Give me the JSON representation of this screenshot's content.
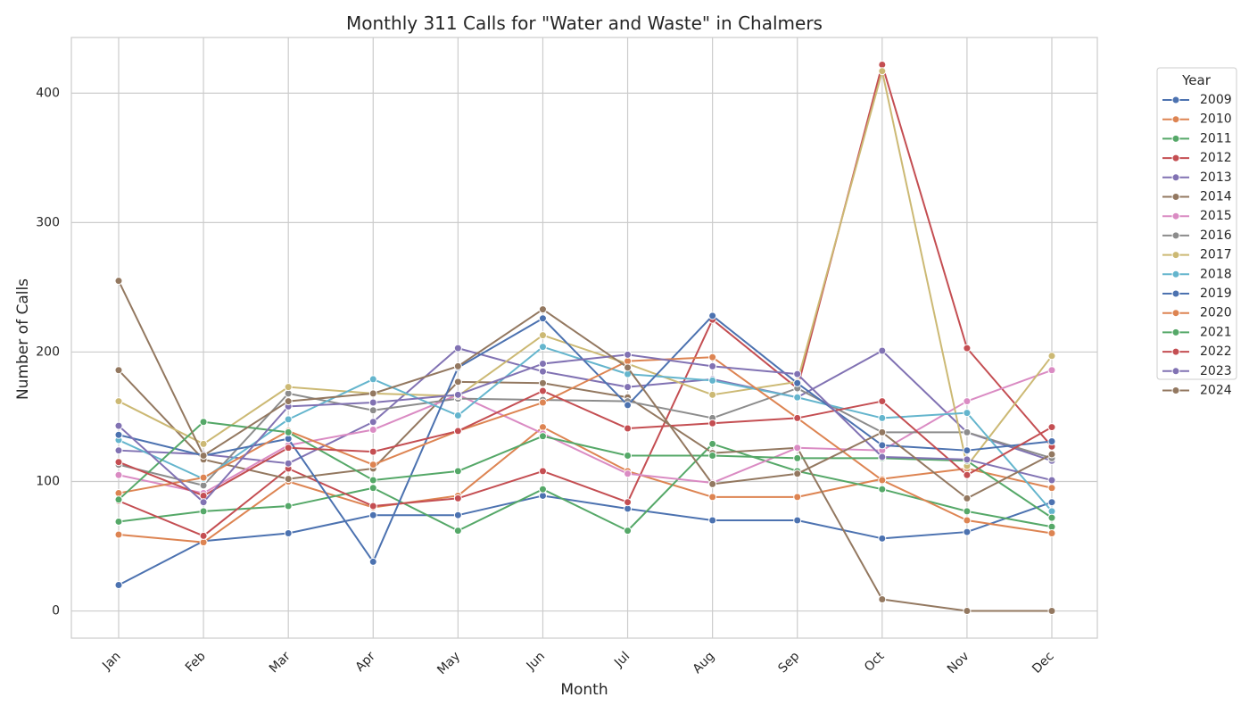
{
  "chart_data": {
    "type": "line",
    "title": "Monthly 311 Calls for \"Water and Waste\" in Chalmers",
    "xlabel": "Month",
    "ylabel": "Number of Calls",
    "categories": [
      "Jan",
      "Feb",
      "Mar",
      "Apr",
      "May",
      "Jun",
      "Jul",
      "Aug",
      "Sep",
      "Oct",
      "Nov",
      "Dec"
    ],
    "yticks": [
      0,
      100,
      200,
      300,
      400
    ],
    "ylim": [
      -21,
      443
    ],
    "grid": true,
    "legend": {
      "title": "Year",
      "placement": "outside-right"
    },
    "series": [
      {
        "name": "2009",
        "color": "#4c72b0",
        "values": [
          20,
          54,
          60,
          74,
          74,
          89,
          79,
          70,
          70,
          56,
          61,
          84
        ]
      },
      {
        "name": "2010",
        "color": "#dd8452",
        "values": [
          59,
          53,
          100,
          80,
          89,
          142,
          108,
          88,
          88,
          102,
          110,
          95
        ]
      },
      {
        "name": "2011",
        "color": "#55a868",
        "values": [
          69,
          77,
          81,
          95,
          62,
          94,
          62,
          129,
          108,
          94,
          77,
          65
        ]
      },
      {
        "name": "2012",
        "color": "#c44e52",
        "values": [
          85,
          58,
          110,
          81,
          87,
          108,
          84,
          225,
          172,
          422,
          203,
          127
        ]
      },
      {
        "name": "2013",
        "color": "#8172b3",
        "values": [
          124,
          121,
          114,
          146,
          203,
          185,
          173,
          179,
          165,
          201,
          138,
          116
        ]
      },
      {
        "name": "2014",
        "color": "#937860",
        "values": [
          186,
          117,
          102,
          110,
          177,
          176,
          165,
          122,
          126,
          9,
          0,
          0
        ]
      },
      {
        "name": "2015",
        "color": "#da8bc3",
        "values": [
          105,
          91,
          128,
          140,
          167,
          137,
          106,
          99,
          126,
          124,
          162,
          186
        ]
      },
      {
        "name": "2016",
        "color": "#8c8c8c",
        "values": [
          113,
          97,
          168,
          155,
          164,
          163,
          162,
          149,
          172,
          138,
          138,
          118
        ]
      },
      {
        "name": "2017",
        "color": "#ccb974",
        "values": [
          162,
          129,
          173,
          168,
          166,
          213,
          191,
          167,
          177,
          417,
          112,
          197
        ]
      },
      {
        "name": "2018",
        "color": "#64b5cd",
        "values": [
          132,
          102,
          148,
          179,
          151,
          204,
          183,
          178,
          165,
          149,
          153,
          77
        ]
      },
      {
        "name": "2019",
        "color": "#4c72b0",
        "values": [
          136,
          120,
          133,
          38,
          188,
          226,
          159,
          228,
          176,
          128,
          124,
          131
        ]
      },
      {
        "name": "2020",
        "color": "#dd8452",
        "values": [
          91,
          103,
          139,
          113,
          139,
          161,
          193,
          196,
          149,
          101,
          70,
          60
        ]
      },
      {
        "name": "2021",
        "color": "#55a868",
        "values": [
          86,
          146,
          138,
          101,
          108,
          135,
          120,
          120,
          118,
          118,
          116,
          72
        ]
      },
      {
        "name": "2022",
        "color": "#c44e52",
        "values": [
          115,
          89,
          126,
          123,
          139,
          170,
          141,
          145,
          149,
          162,
          105,
          142
        ]
      },
      {
        "name": "2023",
        "color": "#8172b3",
        "values": [
          143,
          84,
          158,
          161,
          167,
          191,
          198,
          189,
          183,
          119,
          117,
          101
        ]
      },
      {
        "name": "2024",
        "color": "#937860",
        "values": [
          255,
          120,
          162,
          168,
          189,
          233,
          188,
          98,
          106,
          138,
          87,
          121
        ]
      }
    ]
  }
}
